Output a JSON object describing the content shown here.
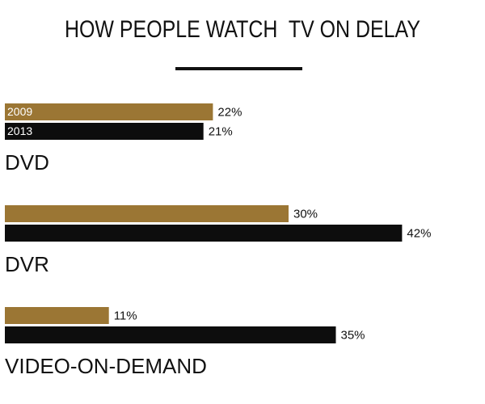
{
  "chart_data": {
    "type": "bar",
    "orientation": "horizontal",
    "title": "HOW PEOPLE WATCH  TV ON DELAY",
    "categories": [
      "DVD",
      "DVR",
      "VIDEO-ON-DEMAND"
    ],
    "series": [
      {
        "name": "2009",
        "color": "#9b7634",
        "values": [
          22,
          30,
          11
        ],
        "value_labels": [
          "22%",
          "30%",
          "11%"
        ]
      },
      {
        "name": "2013",
        "color": "#0d0d0d",
        "values": [
          21,
          42,
          35
        ],
        "value_labels": [
          "21%",
          "42%",
          "35%"
        ]
      }
    ]
  }
}
